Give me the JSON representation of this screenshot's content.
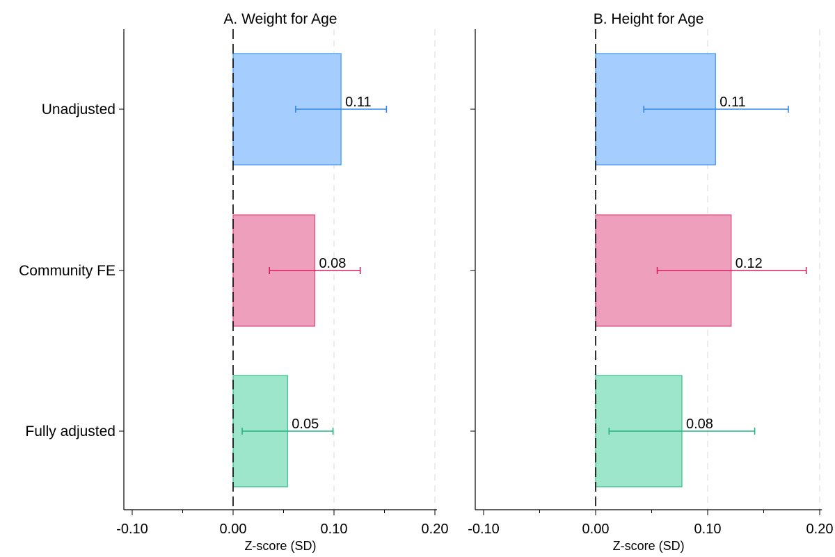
{
  "chart_data": [
    {
      "type": "bar",
      "orientation": "horizontal",
      "title": "A. Weight for Age",
      "xlabel": "Z-score (SD)",
      "categories": [
        "Unadjusted",
        "Community FE",
        "Fully adjusted"
      ],
      "values": [
        0.107,
        0.081,
        0.054
      ],
      "labels": [
        "0.11",
        "0.08",
        "0.05"
      ],
      "ci_low": [
        0.062,
        0.036,
        0.009
      ],
      "ci_high": [
        0.152,
        0.126,
        0.099
      ],
      "xlim": [
        -0.108,
        0.202
      ],
      "xticks": [
        -0.1,
        0.0,
        0.1,
        0.2
      ],
      "xtick_labels": [
        "-0.10",
        "0.00",
        "0.10",
        "0.20"
      ],
      "reference_line": 0,
      "grid": "vertical dashed"
    },
    {
      "type": "bar",
      "orientation": "horizontal",
      "title": "B. Height for Age",
      "xlabel": "Z-score (SD)",
      "categories": [
        "Unadjusted",
        "Community FE",
        "Fully adjusted"
      ],
      "values": [
        0.107,
        0.121,
        0.077
      ],
      "labels": [
        "0.11",
        "0.12",
        "0.08"
      ],
      "ci_low": [
        0.043,
        0.055,
        0.012
      ],
      "ci_high": [
        0.172,
        0.188,
        0.142
      ],
      "xlim": [
        -0.108,
        0.202
      ],
      "xticks": [
        -0.1,
        0.0,
        0.1,
        0.2
      ],
      "xtick_labels": [
        "-0.10",
        "0.00",
        "0.10",
        "0.20"
      ],
      "reference_line": 0,
      "grid": "vertical dashed"
    }
  ],
  "colors": {
    "bar_fill": [
      "#a5cdfd",
      "#ee9fbc",
      "#9de5cb"
    ],
    "bar_stroke": [
      "#3e95ef",
      "#dc4a7d",
      "#35bf8c"
    ],
    "ci": [
      "#2f86e8",
      "#d4205f",
      "#22b57e"
    ],
    "axis": "#000000",
    "zero_line": "#000000",
    "grid": "#e6e6e6"
  }
}
